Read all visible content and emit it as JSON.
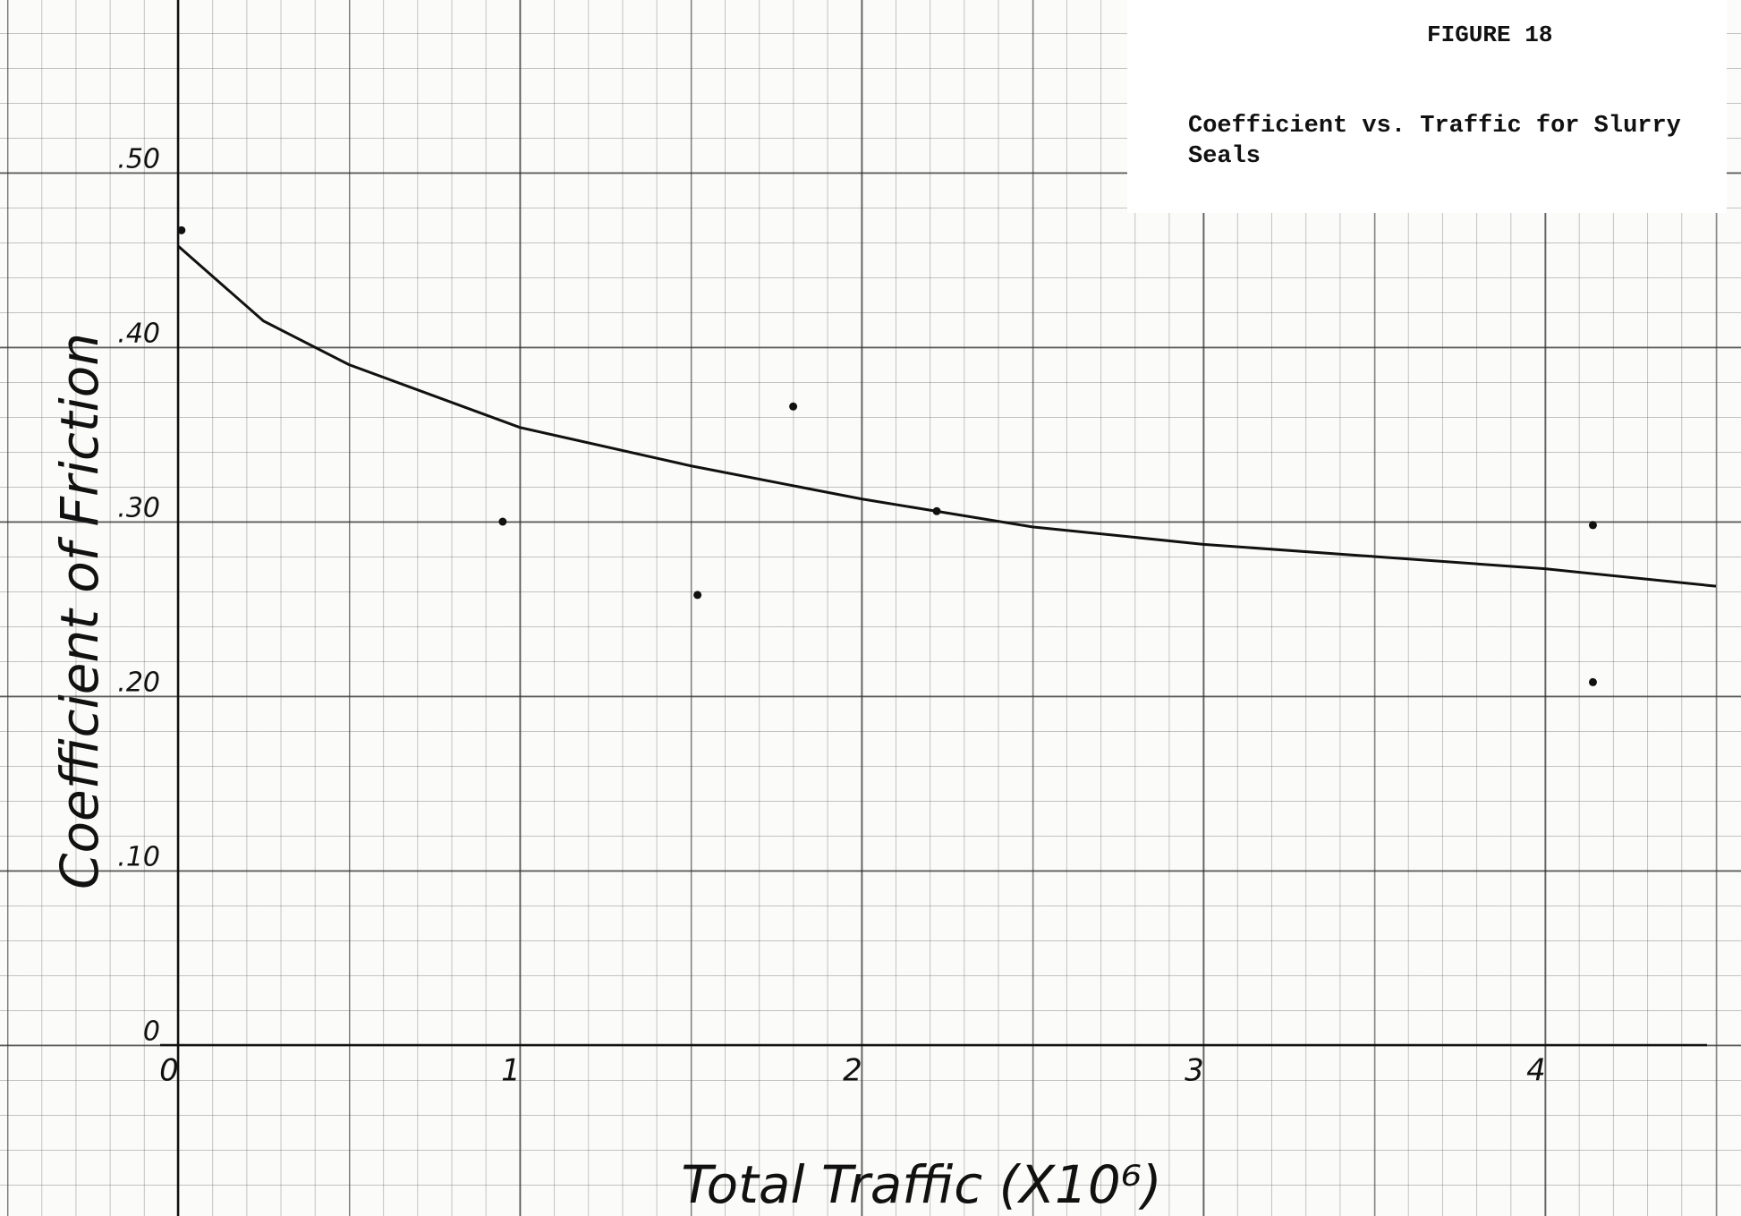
{
  "chart_data": {
    "type": "scatter",
    "figure_label": "FIGURE 18",
    "title": "Coefficient vs. Traffic for Slurry Seals",
    "x_label": "Total Traffic (X10⁶)",
    "y_label": "Coefficient of Friction",
    "xlim": [
      0,
      4.5
    ],
    "ylim": [
      0,
      0.6
    ],
    "xticks": [
      0,
      1,
      2,
      3,
      4
    ],
    "yticks": [
      0,
      {
        "value": 0.1,
        "label": ".10"
      },
      {
        "value": 0.2,
        "label": ".20"
      },
      {
        "value": 0.3,
        "label": ".30"
      },
      {
        "value": 0.4,
        "label": ".40"
      },
      {
        "value": 0.5,
        "label": ".50"
      }
    ],
    "grid": true,
    "color": "#111111",
    "points": {
      "x": [
        0.01,
        0.95,
        1.52,
        1.8,
        2.22,
        4.14,
        4.14
      ],
      "y": [
        0.467,
        0.3,
        0.258,
        0.366,
        0.306,
        0.298,
        0.208
      ]
    },
    "curve": {
      "x": [
        0,
        0.25,
        0.5,
        1,
        1.5,
        2,
        2.5,
        3,
        3.5,
        4,
        4.5
      ],
      "y": [
        0.458,
        0.415,
        0.39,
        0.354,
        0.332,
        0.313,
        0.297,
        0.287,
        0.28,
        0.273,
        0.263
      ]
    }
  }
}
